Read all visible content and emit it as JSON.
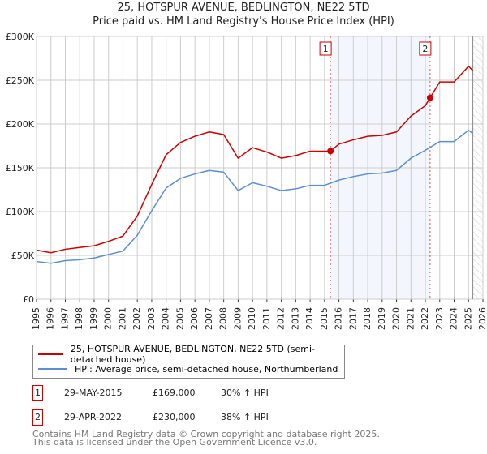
{
  "chart_data": {
    "type": "line",
    "title": "25, HOTSPUR AVENUE, BEDLINGTON, NE22 5TD",
    "subtitle": "Price paid vs. HM Land Registry's House Price Index (HPI)",
    "xlim": [
      1995,
      2026
    ],
    "ylim": [
      0,
      300000
    ],
    "yticks": [
      0,
      50000,
      100000,
      150000,
      200000,
      250000,
      300000
    ],
    "ytick_labels": [
      "£0",
      "£50K",
      "£100K",
      "£150K",
      "£200K",
      "£250K",
      "£300K"
    ],
    "xticks": [
      "1995",
      "1996",
      "1997",
      "1998",
      "1999",
      "2000",
      "2001",
      "2002",
      "2003",
      "2004",
      "2005",
      "2006",
      "2007",
      "2008",
      "2009",
      "2010",
      "2011",
      "2012",
      "2013",
      "2014",
      "2015",
      "2016",
      "2017",
      "2018",
      "2019",
      "2020",
      "2021",
      "2022",
      "2023",
      "2024",
      "2025",
      "2026"
    ],
    "grid": true,
    "data_end": 2025.3,
    "series": [
      {
        "name": "25, HOTSPUR AVENUE, BEDLINGTON, NE22 5TD (semi-detached house)",
        "color": "#cc0000",
        "x": [
          1995,
          1996,
          1997,
          1998,
          1999,
          2000,
          2001,
          2002,
          2003,
          2004,
          2005,
          2006,
          2007,
          2008,
          2009,
          2010,
          2011,
          2012,
          2013,
          2014,
          2015,
          2015.41,
          2016,
          2017,
          2018,
          2019,
          2020,
          2021,
          2022,
          2022.33,
          2023,
          2024,
          2025,
          2025.3
        ],
        "y": [
          56000,
          53000,
          57000,
          59000,
          61000,
          66000,
          72000,
          95000,
          131000,
          165000,
          179000,
          186000,
          191000,
          188000,
          161000,
          173000,
          168000,
          161000,
          164000,
          169000,
          169000,
          169000,
          177000,
          182000,
          186000,
          187000,
          191000,
          209000,
          221000,
          230000,
          248000,
          248000,
          266000,
          261000
        ]
      },
      {
        "name": "HPI: Average price, semi-detached house, Northumberland",
        "color": "#5b8fd0",
        "x": [
          1995,
          1996,
          1997,
          1998,
          1999,
          2000,
          2001,
          2002,
          2003,
          2004,
          2005,
          2006,
          2007,
          2008,
          2009,
          2010,
          2011,
          2012,
          2013,
          2014,
          2015,
          2016,
          2017,
          2018,
          2019,
          2020,
          2021,
          2022,
          2023,
          2024,
          2025,
          2025.3
        ],
        "y": [
          43000,
          41000,
          44000,
          45000,
          47000,
          51000,
          55000,
          73000,
          101000,
          127000,
          138000,
          143000,
          147000,
          145000,
          124000,
          133000,
          129000,
          124000,
          126000,
          130000,
          130000,
          136000,
          140000,
          143000,
          144000,
          147000,
          161000,
          170000,
          180000,
          180000,
          193000,
          189000
        ]
      }
    ],
    "annotations": [
      {
        "label": "1",
        "x": 2015.41,
        "y": 169000
      },
      {
        "label": "2",
        "x": 2022.33,
        "y": 230000
      }
    ]
  },
  "legend": {
    "red": "25, HOTSPUR AVENUE, BEDLINGTON, NE22 5TD (semi-detached house)",
    "blue": "HPI: Average price, semi-detached house, Northumberland"
  },
  "sales": [
    {
      "num": "1",
      "date": "29-MAY-2015",
      "price": "£169,000",
      "hpi": "30% ↑ HPI"
    },
    {
      "num": "2",
      "date": "29-APR-2022",
      "price": "£230,000",
      "hpi": "38% ↑ HPI"
    }
  ],
  "footer": {
    "line1": "Contains HM Land Registry data © Crown copyright and database right 2025.",
    "line2": "This data is licensed under the Open Government Licence v3.0."
  }
}
